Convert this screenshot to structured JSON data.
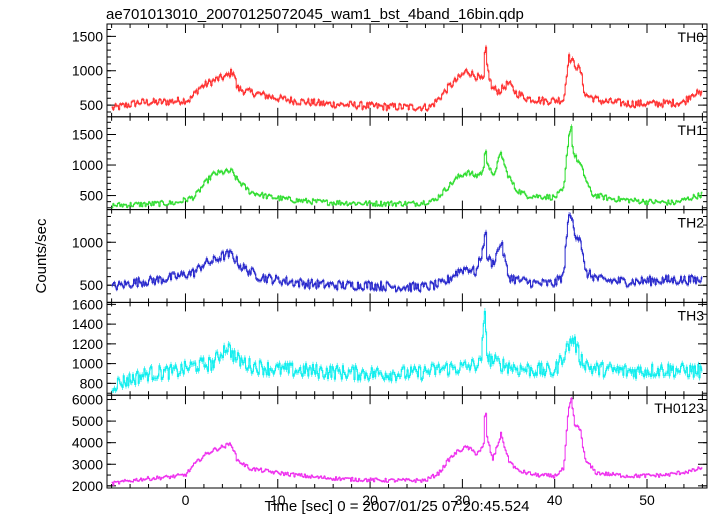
{
  "chart_data": {
    "type": "line",
    "title": "ae701013010_20070125072045_wam1_bst_4band_16bin.qdp",
    "xlabel": "Time [sec] 0 = 2007/01/25 07:20:45.524",
    "ylabel": "Counts/sec",
    "xlim": [
      -8.5,
      56.5
    ],
    "x_ticks": [
      0,
      10,
      20,
      30,
      40,
      50
    ],
    "x_tick_labels": [
      "0",
      "10",
      "20",
      "30",
      "40",
      "50"
    ],
    "grid": false,
    "legend": "none",
    "panels": [
      {
        "name": "TH0",
        "color": "#ff3030",
        "ylim": [
          330,
          1680
        ],
        "y_ticks": [
          500,
          1000,
          1500
        ],
        "y_tick_labels": [
          "500",
          "1000",
          "1500"
        ],
        "minor_step": 100,
        "noise": 55,
        "points": [
          [
            -8,
            450
          ],
          [
            -5,
            540
          ],
          [
            -3,
            540
          ],
          [
            -1,
            560
          ],
          [
            0.5,
            580
          ],
          [
            1.5,
            750
          ],
          [
            2.5,
            820
          ],
          [
            3.5,
            880
          ],
          [
            4.5,
            920
          ],
          [
            5.2,
            1000
          ],
          [
            5.6,
            750
          ],
          [
            6.5,
            700
          ],
          [
            8,
            660
          ],
          [
            10,
            600
          ],
          [
            12,
            560
          ],
          [
            15,
            520
          ],
          [
            18,
            500
          ],
          [
            21,
            480
          ],
          [
            24,
            470
          ],
          [
            26.5,
            470
          ],
          [
            27.5,
            600
          ],
          [
            28.5,
            760
          ],
          [
            29.5,
            880
          ],
          [
            30.5,
            1000
          ],
          [
            31.5,
            920
          ],
          [
            32.3,
            850
          ],
          [
            32.5,
            1400
          ],
          [
            32.7,
            1050
          ],
          [
            33.2,
            750
          ],
          [
            34,
            700
          ],
          [
            35,
            820
          ],
          [
            35.8,
            680
          ],
          [
            37,
            600
          ],
          [
            39,
            560
          ],
          [
            41,
            580
          ],
          [
            41.5,
            1200
          ],
          [
            42,
            1120
          ],
          [
            42.8,
            1000
          ],
          [
            43.3,
            650
          ],
          [
            45,
            560
          ],
          [
            48,
            520
          ],
          [
            51,
            520
          ],
          [
            54,
            540
          ],
          [
            55,
            680
          ],
          [
            56,
            650
          ]
        ]
      },
      {
        "name": "TH1",
        "color": "#30dd30",
        "ylim": [
          270,
          1790
        ],
        "y_ticks": [
          500,
          1000,
          1500
        ],
        "y_tick_labels": [
          "500",
          "1000",
          "1500"
        ],
        "minor_step": 100,
        "noise": 45,
        "points": [
          [
            -8,
            340
          ],
          [
            -4,
            360
          ],
          [
            -1,
            380
          ],
          [
            1,
            480
          ],
          [
            2,
            680
          ],
          [
            3,
            850
          ],
          [
            4,
            880
          ],
          [
            5,
            900
          ],
          [
            5.6,
            760
          ],
          [
            7,
            560
          ],
          [
            9,
            480
          ],
          [
            12,
            420
          ],
          [
            15,
            390
          ],
          [
            20,
            370
          ],
          [
            25,
            370
          ],
          [
            27,
            420
          ],
          [
            28.5,
            650
          ],
          [
            29.5,
            800
          ],
          [
            30.5,
            880
          ],
          [
            31.5,
            820
          ],
          [
            32.3,
            900
          ],
          [
            32.5,
            1350
          ],
          [
            32.7,
            1050
          ],
          [
            33.3,
            800
          ],
          [
            34.2,
            1200
          ],
          [
            34.8,
            880
          ],
          [
            35.8,
            600
          ],
          [
            37,
            500
          ],
          [
            40,
            470
          ],
          [
            41,
            600
          ],
          [
            41.5,
            1450
          ],
          [
            41.8,
            1650
          ],
          [
            42,
            1200
          ],
          [
            42.8,
            1000
          ],
          [
            43.3,
            800
          ],
          [
            44,
            520
          ],
          [
            46,
            450
          ],
          [
            50,
            400
          ],
          [
            53,
            380
          ],
          [
            56,
            520
          ]
        ]
      },
      {
        "name": "TH2",
        "color": "#2828cc",
        "ylim": [
          300,
          1380
        ],
        "y_ticks": [
          500,
          1000
        ],
        "y_tick_labels": [
          "500",
          "1000"
        ],
        "minor_step": 100,
        "noise": 55,
        "points": [
          [
            -8,
            480
          ],
          [
            -5,
            540
          ],
          [
            -3,
            560
          ],
          [
            -1,
            600
          ],
          [
            1,
            650
          ],
          [
            2,
            750
          ],
          [
            3,
            780
          ],
          [
            4,
            840
          ],
          [
            5,
            860
          ],
          [
            6,
            720
          ],
          [
            8,
            600
          ],
          [
            10,
            560
          ],
          [
            13,
            520
          ],
          [
            16,
            500
          ],
          [
            20,
            500
          ],
          [
            23,
            480
          ],
          [
            26,
            480
          ],
          [
            28,
            520
          ],
          [
            29.5,
            660
          ],
          [
            30.5,
            700
          ],
          [
            31.5,
            650
          ],
          [
            32.2,
            900
          ],
          [
            32.5,
            1180
          ],
          [
            32.7,
            820
          ],
          [
            33.3,
            750
          ],
          [
            34.2,
            1000
          ],
          [
            35,
            600
          ],
          [
            36,
            560
          ],
          [
            38,
            520
          ],
          [
            40,
            520
          ],
          [
            41,
            620
          ],
          [
            41.4,
            1250
          ],
          [
            41.8,
            1300
          ],
          [
            42.2,
            1100
          ],
          [
            42.8,
            1050
          ],
          [
            43.3,
            650
          ],
          [
            45,
            560
          ],
          [
            48,
            540
          ],
          [
            52,
            560
          ],
          [
            56,
            560
          ]
        ]
      },
      {
        "name": "TH3",
        "color": "#10eeee",
        "ylim": [
          680,
          1620
        ],
        "y_ticks": [
          800,
          1000,
          1200,
          1400,
          1600
        ],
        "y_tick_labels": [
          "800",
          "1000",
          "1200",
          "1400",
          "1600"
        ],
        "minor_step": 100,
        "noise": 75,
        "points": [
          [
            -8,
            780
          ],
          [
            -4,
            900
          ],
          [
            -1,
            920
          ],
          [
            1,
            980
          ],
          [
            3,
            1000
          ],
          [
            4.5,
            1180
          ],
          [
            5.5,
            1050
          ],
          [
            7,
            980
          ],
          [
            10,
            940
          ],
          [
            15,
            920
          ],
          [
            20,
            900
          ],
          [
            25,
            900
          ],
          [
            28,
            950
          ],
          [
            30,
            960
          ],
          [
            32,
            1000
          ],
          [
            32.5,
            1550
          ],
          [
            32.7,
            1050
          ],
          [
            34,
            1000
          ],
          [
            36,
            950
          ],
          [
            40,
            920
          ],
          [
            41.5,
            1180
          ],
          [
            42,
            1260
          ],
          [
            42.8,
            1050
          ],
          [
            44,
            950
          ],
          [
            48,
            920
          ],
          [
            52,
            940
          ],
          [
            56,
            920
          ]
        ]
      },
      {
        "name": "TH0123",
        "color": "#ee30ee",
        "ylim": [
          1900,
          6200
        ],
        "y_ticks": [
          2000,
          3000,
          4000,
          5000,
          6000
        ],
        "y_tick_labels": [
          "2000",
          "3000",
          "4000",
          "5000",
          "6000"
        ],
        "minor_step": 500,
        "noise": 90,
        "points": [
          [
            -8,
            2100
          ],
          [
            -5,
            2300
          ],
          [
            -2,
            2400
          ],
          [
            0,
            2500
          ],
          [
            1,
            3000
          ],
          [
            2,
            3400
          ],
          [
            3,
            3650
          ],
          [
            4,
            3800
          ],
          [
            5,
            3950
          ],
          [
            5.6,
            3200
          ],
          [
            7,
            2800
          ],
          [
            10,
            2600
          ],
          [
            14,
            2400
          ],
          [
            18,
            2300
          ],
          [
            22,
            2250
          ],
          [
            26,
            2250
          ],
          [
            27.5,
            2600
          ],
          [
            28.5,
            3200
          ],
          [
            29.5,
            3600
          ],
          [
            30.5,
            3800
          ],
          [
            31.5,
            3500
          ],
          [
            32.3,
            3800
          ],
          [
            32.5,
            5800
          ],
          [
            32.7,
            4200
          ],
          [
            33.3,
            3200
          ],
          [
            34.2,
            4400
          ],
          [
            35,
            3200
          ],
          [
            36,
            2700
          ],
          [
            38,
            2500
          ],
          [
            40,
            2450
          ],
          [
            41,
            2800
          ],
          [
            41.5,
            5500
          ],
          [
            41.8,
            6000
          ],
          [
            42.2,
            4800
          ],
          [
            42.8,
            4600
          ],
          [
            43.3,
            3200
          ],
          [
            44.5,
            2600
          ],
          [
            48,
            2450
          ],
          [
            52,
            2500
          ],
          [
            55,
            2700
          ],
          [
            56,
            2850
          ]
        ]
      }
    ]
  }
}
